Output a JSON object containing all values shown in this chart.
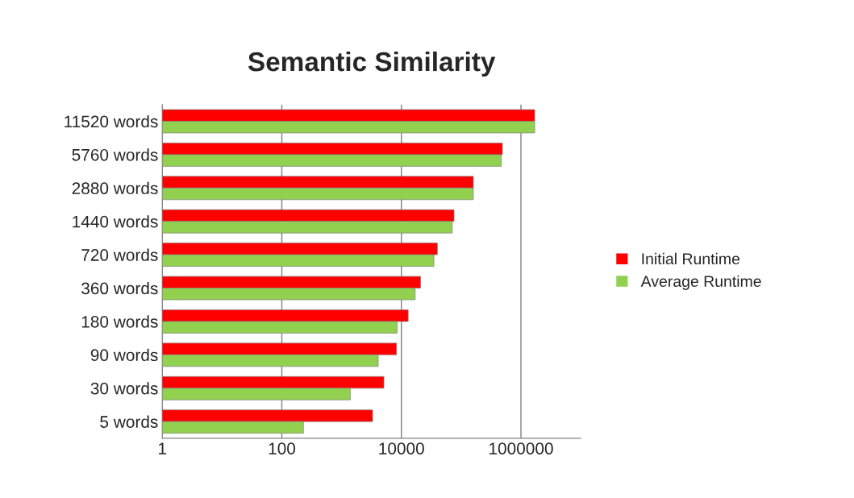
{
  "chart_data": {
    "type": "bar",
    "orientation": "horizontal",
    "title": "Semantic Similarity",
    "categories": [
      "11520 words",
      "5760 words",
      "2880 words",
      "1440 words",
      "720 words",
      "360 words",
      "180 words",
      "90 words",
      "30 words",
      "5 words"
    ],
    "series": [
      {
        "name": "Initial Runtime",
        "color": "#ff0000",
        "values": [
          1700000,
          490000,
          160000,
          76000,
          40000,
          21000,
          13000,
          8300,
          5100,
          3300
        ]
      },
      {
        "name": "Average Runtime",
        "color": "#92d050",
        "values": [
          1700000,
          470000,
          160000,
          71000,
          35000,
          17000,
          8500,
          4100,
          1400,
          230
        ]
      }
    ],
    "log": "x",
    "xlim": [
      1,
      10000000
    ],
    "xticks": [
      1,
      100,
      10000,
      1000000
    ],
    "grid": "x",
    "legend": "right"
  }
}
